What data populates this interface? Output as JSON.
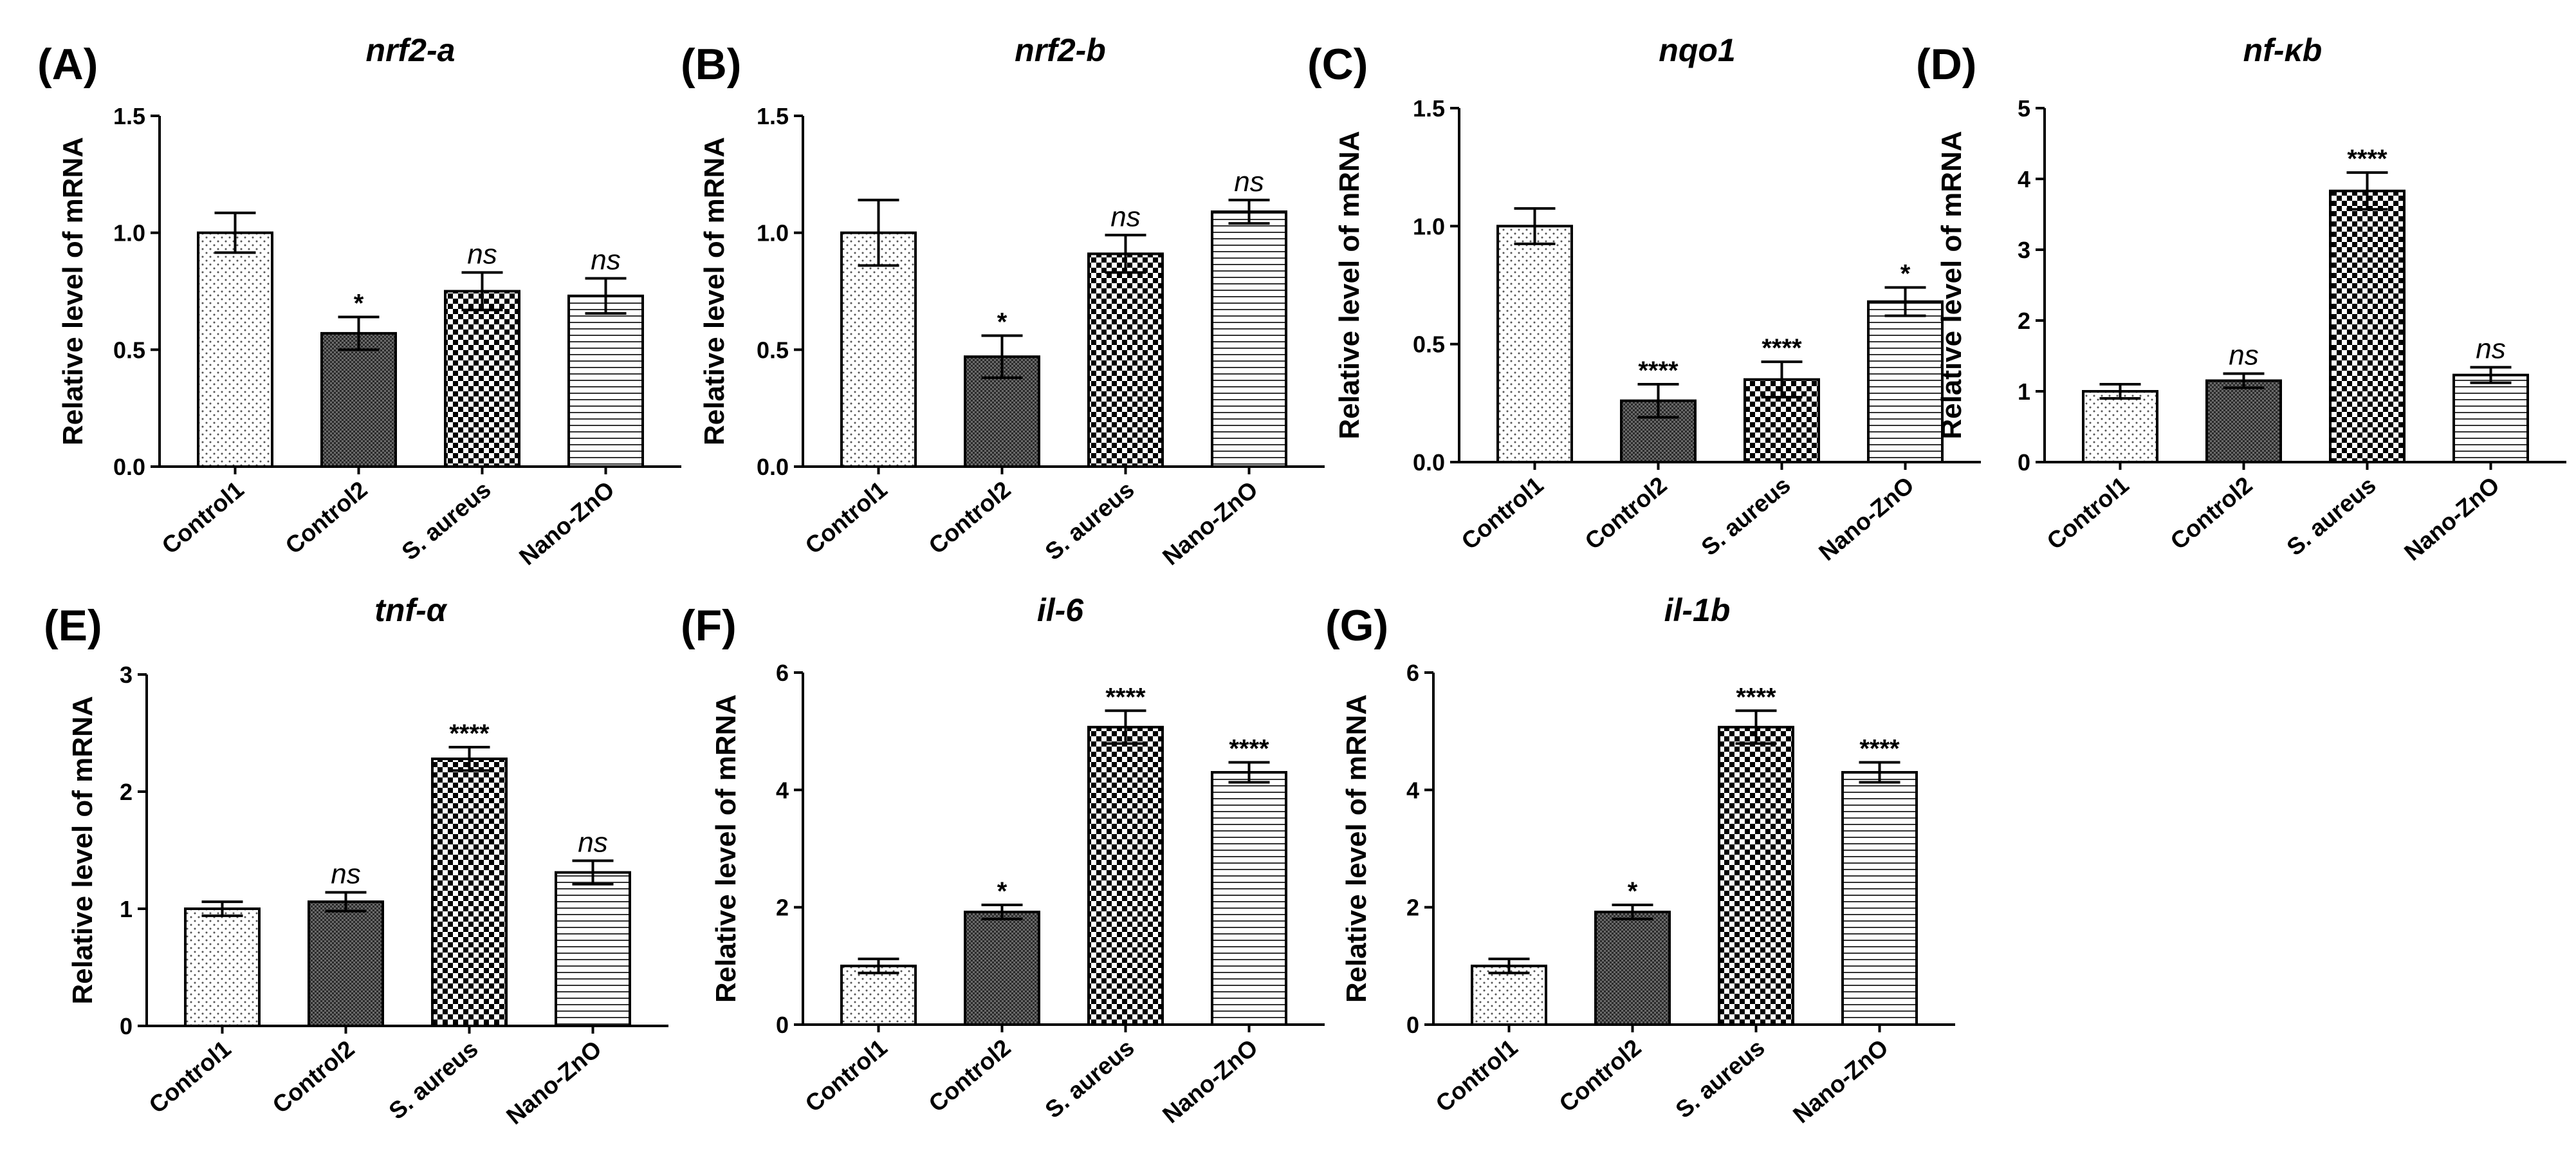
{
  "colors": {
    "ink": "#000000",
    "background": "#ffffff"
  },
  "chart_data": [
    {
      "panel": "(A)",
      "title": "nrf2-a",
      "type": "bar",
      "ylabel": "Relative level of mRNA",
      "xlabel": "",
      "categories": [
        "Control1",
        "Control2",
        "S. aureus",
        "Nano-ZnO"
      ],
      "values": [
        1.0,
        0.57,
        0.75,
        0.73
      ],
      "errors": [
        0.085,
        0.07,
        0.08,
        0.075
      ],
      "significance": [
        "",
        "*",
        "ns",
        "ns"
      ],
      "ylim": [
        0,
        1.5
      ],
      "yticks": [
        0.0,
        0.5,
        1.0,
        1.5
      ],
      "ytick_labels": [
        "0.0",
        "0.5",
        "1.0",
        "1.5"
      ],
      "patterns": [
        "dots",
        "dense",
        "checker",
        "hlines"
      ]
    },
    {
      "panel": "(B)",
      "title": "nrf2-b",
      "type": "bar",
      "ylabel": "Relative level of mRNA",
      "xlabel": "",
      "categories": [
        "Control1",
        "Control2",
        "S. aureus",
        "Nano-ZnO"
      ],
      "values": [
        1.0,
        0.47,
        0.91,
        1.09
      ],
      "errors": [
        0.14,
        0.09,
        0.08,
        0.05
      ],
      "significance": [
        "",
        "*",
        "ns",
        "ns"
      ],
      "ylim": [
        0,
        1.5
      ],
      "yticks": [
        0.0,
        0.5,
        1.0,
        1.5
      ],
      "ytick_labels": [
        "0.0",
        "0.5",
        "1.0",
        "1.5"
      ],
      "patterns": [
        "dots",
        "dense",
        "checker",
        "hlines"
      ]
    },
    {
      "panel": "(C)",
      "title": "nqo1",
      "type": "bar",
      "ylabel": "Relative level of mRNA",
      "xlabel": "",
      "categories": [
        "Control1",
        "Control2",
        "S. aureus",
        "Nano-ZnO"
      ],
      "values": [
        1.0,
        0.26,
        0.35,
        0.68
      ],
      "errors": [
        0.075,
        0.07,
        0.075,
        0.06
      ],
      "significance": [
        "",
        "****",
        "****",
        "*"
      ],
      "ylim": [
        0,
        1.5
      ],
      "yticks": [
        0.0,
        0.5,
        1.0,
        1.5
      ],
      "ytick_labels": [
        "0.0",
        "0.5",
        "1.0",
        "1.5"
      ],
      "patterns": [
        "dots",
        "dense",
        "checker",
        "hlines"
      ]
    },
    {
      "panel": "(D)",
      "title": "nf-κb",
      "type": "bar",
      "ylabel": "Relative level of mRNA",
      "xlabel": "",
      "categories": [
        "Control1",
        "Control2",
        "S. aureus",
        "Nano-ZnO"
      ],
      "values": [
        1.0,
        1.15,
        3.83,
        1.23
      ],
      "errors": [
        0.1,
        0.1,
        0.26,
        0.11
      ],
      "significance": [
        "",
        "ns",
        "****",
        "ns"
      ],
      "ylim": [
        0,
        5
      ],
      "yticks": [
        0,
        1,
        2,
        3,
        4,
        5
      ],
      "ytick_labels": [
        "0",
        "1",
        "2",
        "3",
        "4",
        "5"
      ],
      "patterns": [
        "dots",
        "dense",
        "checker",
        "hlines"
      ]
    },
    {
      "panel": "(E)",
      "title": "tnf-α",
      "type": "bar",
      "ylabel": "Relative level of mRNA",
      "xlabel": "",
      "categories": [
        "Control1",
        "Control2",
        "S. aureus",
        "Nano-ZnO"
      ],
      "values": [
        1.0,
        1.06,
        2.28,
        1.31
      ],
      "errors": [
        0.06,
        0.08,
        0.1,
        0.1
      ],
      "significance": [
        "",
        "ns",
        "****",
        "ns"
      ],
      "ylim": [
        0,
        3
      ],
      "yticks": [
        0,
        1,
        2,
        3
      ],
      "ytick_labels": [
        "0",
        "1",
        "2",
        "3"
      ],
      "patterns": [
        "dots",
        "dense",
        "checker",
        "hlines"
      ]
    },
    {
      "panel": "(F)",
      "title": "il-6",
      "type": "bar",
      "ylabel": "Relative level of mRNA",
      "xlabel": "",
      "categories": [
        "Control1",
        "Control2",
        "S. aureus",
        "Nano-ZnO"
      ],
      "values": [
        1.0,
        1.92,
        5.07,
        4.3
      ],
      "errors": [
        0.12,
        0.12,
        0.28,
        0.17
      ],
      "significance": [
        "",
        "*",
        "****",
        "****"
      ],
      "ylim": [
        0,
        6
      ],
      "yticks": [
        0,
        2,
        4,
        6
      ],
      "ytick_labels": [
        "0",
        "2",
        "4",
        "6"
      ],
      "patterns": [
        "dots",
        "dense",
        "checker",
        "hlines"
      ]
    },
    {
      "panel": "(G)",
      "title": "il-1b",
      "type": "bar",
      "ylabel": "Relative level of mRNA",
      "xlabel": "",
      "categories": [
        "Control1",
        "Control2",
        "S. aureus",
        "Nano-ZnO"
      ],
      "values": [
        1.0,
        1.92,
        5.07,
        4.3
      ],
      "errors": [
        0.12,
        0.12,
        0.28,
        0.17
      ],
      "significance": [
        "",
        "*",
        "****",
        "****"
      ],
      "ylim": [
        0,
        6
      ],
      "yticks": [
        0,
        2,
        4,
        6
      ],
      "ytick_labels": [
        "0",
        "2",
        "4",
        "6"
      ],
      "patterns": [
        "dots",
        "dense",
        "checker",
        "hlines"
      ]
    }
  ]
}
